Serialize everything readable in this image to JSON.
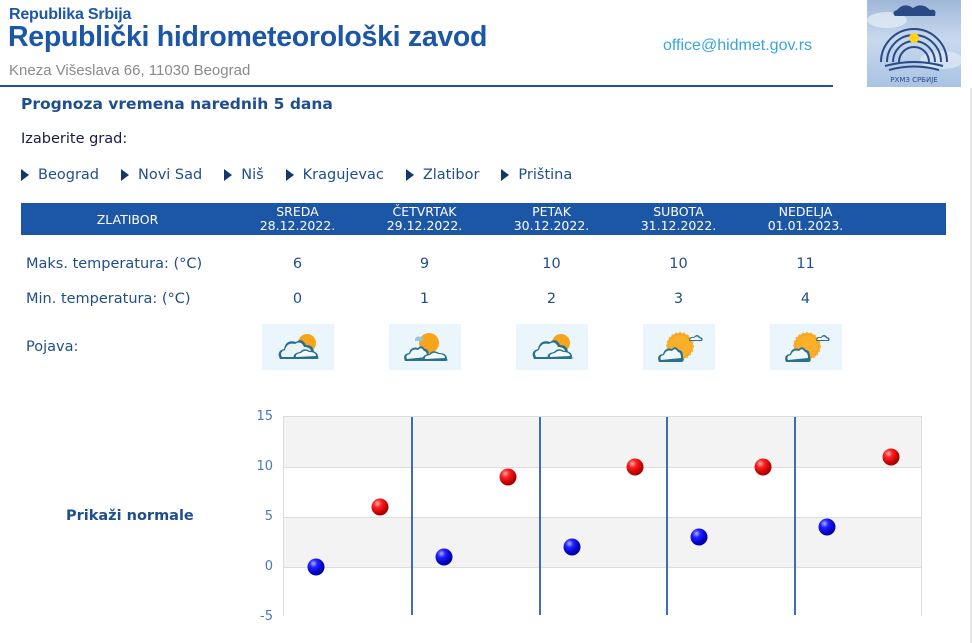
{
  "header": {
    "superscript": "Republika Srbija",
    "title": "Republički hidrometeorološki zavod",
    "address": "Kneza Višeslava 66, 11030 Beograd",
    "email": "office@hidmet.gov.rs",
    "logo_text": "РХМЗ СРБИЈЕ",
    "brand_color": "#1c56a6"
  },
  "page": {
    "title": "Prognoza vremena narednih 5 dana",
    "choose_city_label": "Izaberite grad:",
    "cities": [
      "Beograd",
      "Novi Sad",
      "Niš",
      "Kragujevac",
      "Zlatibor",
      "Priština"
    ],
    "show_normals_label": "Prikaži normale"
  },
  "forecast": {
    "city": "ZLATIBOR",
    "days": [
      {
        "day": "SREDA",
        "date": "28.12.2022.",
        "max": "6",
        "min": "0",
        "icon": "cloudy-with-sun-icon"
      },
      {
        "day": "ČETVRTAK",
        "date": "29.12.2022.",
        "max": "9",
        "min": "1",
        "icon": "partly-cloudy-icon"
      },
      {
        "day": "PETAK",
        "date": "30.12.2022.",
        "max": "10",
        "min": "2",
        "icon": "cloudy-with-sun-icon"
      },
      {
        "day": "SUBOTA",
        "date": "31.12.2022.",
        "max": "10",
        "min": "3",
        "icon": "mostly-sunny-icon"
      },
      {
        "day": "NEDELJA",
        "date": "01.01.2023.",
        "max": "11",
        "min": "4",
        "icon": "mostly-sunny-icon"
      }
    ],
    "labels": {
      "max": "Maks. temperatura: (°C)",
      "min": "Min. temperatura: (°C)",
      "phenomenon": "Pojava:"
    }
  },
  "chart_data": {
    "type": "scatter",
    "title": "",
    "xlabel": "",
    "ylabel": "",
    "categories": [
      "28.12.2022.",
      "29.12.2022.",
      "30.12.2022.",
      "31.12.2022.",
      "01.01.2023."
    ],
    "series": [
      {
        "name": "Min. temperatura",
        "color": "#0000cc",
        "values": [
          0,
          1,
          2,
          3,
          4
        ]
      },
      {
        "name": "Maks. temperatura",
        "color": "#cc0000",
        "values": [
          6,
          9,
          10,
          10,
          11
        ]
      }
    ],
    "yticks": [
      "15",
      "10",
      "5",
      "0",
      "-5"
    ],
    "ylim": [
      -5,
      15
    ],
    "grid": true,
    "legend": "none"
  }
}
